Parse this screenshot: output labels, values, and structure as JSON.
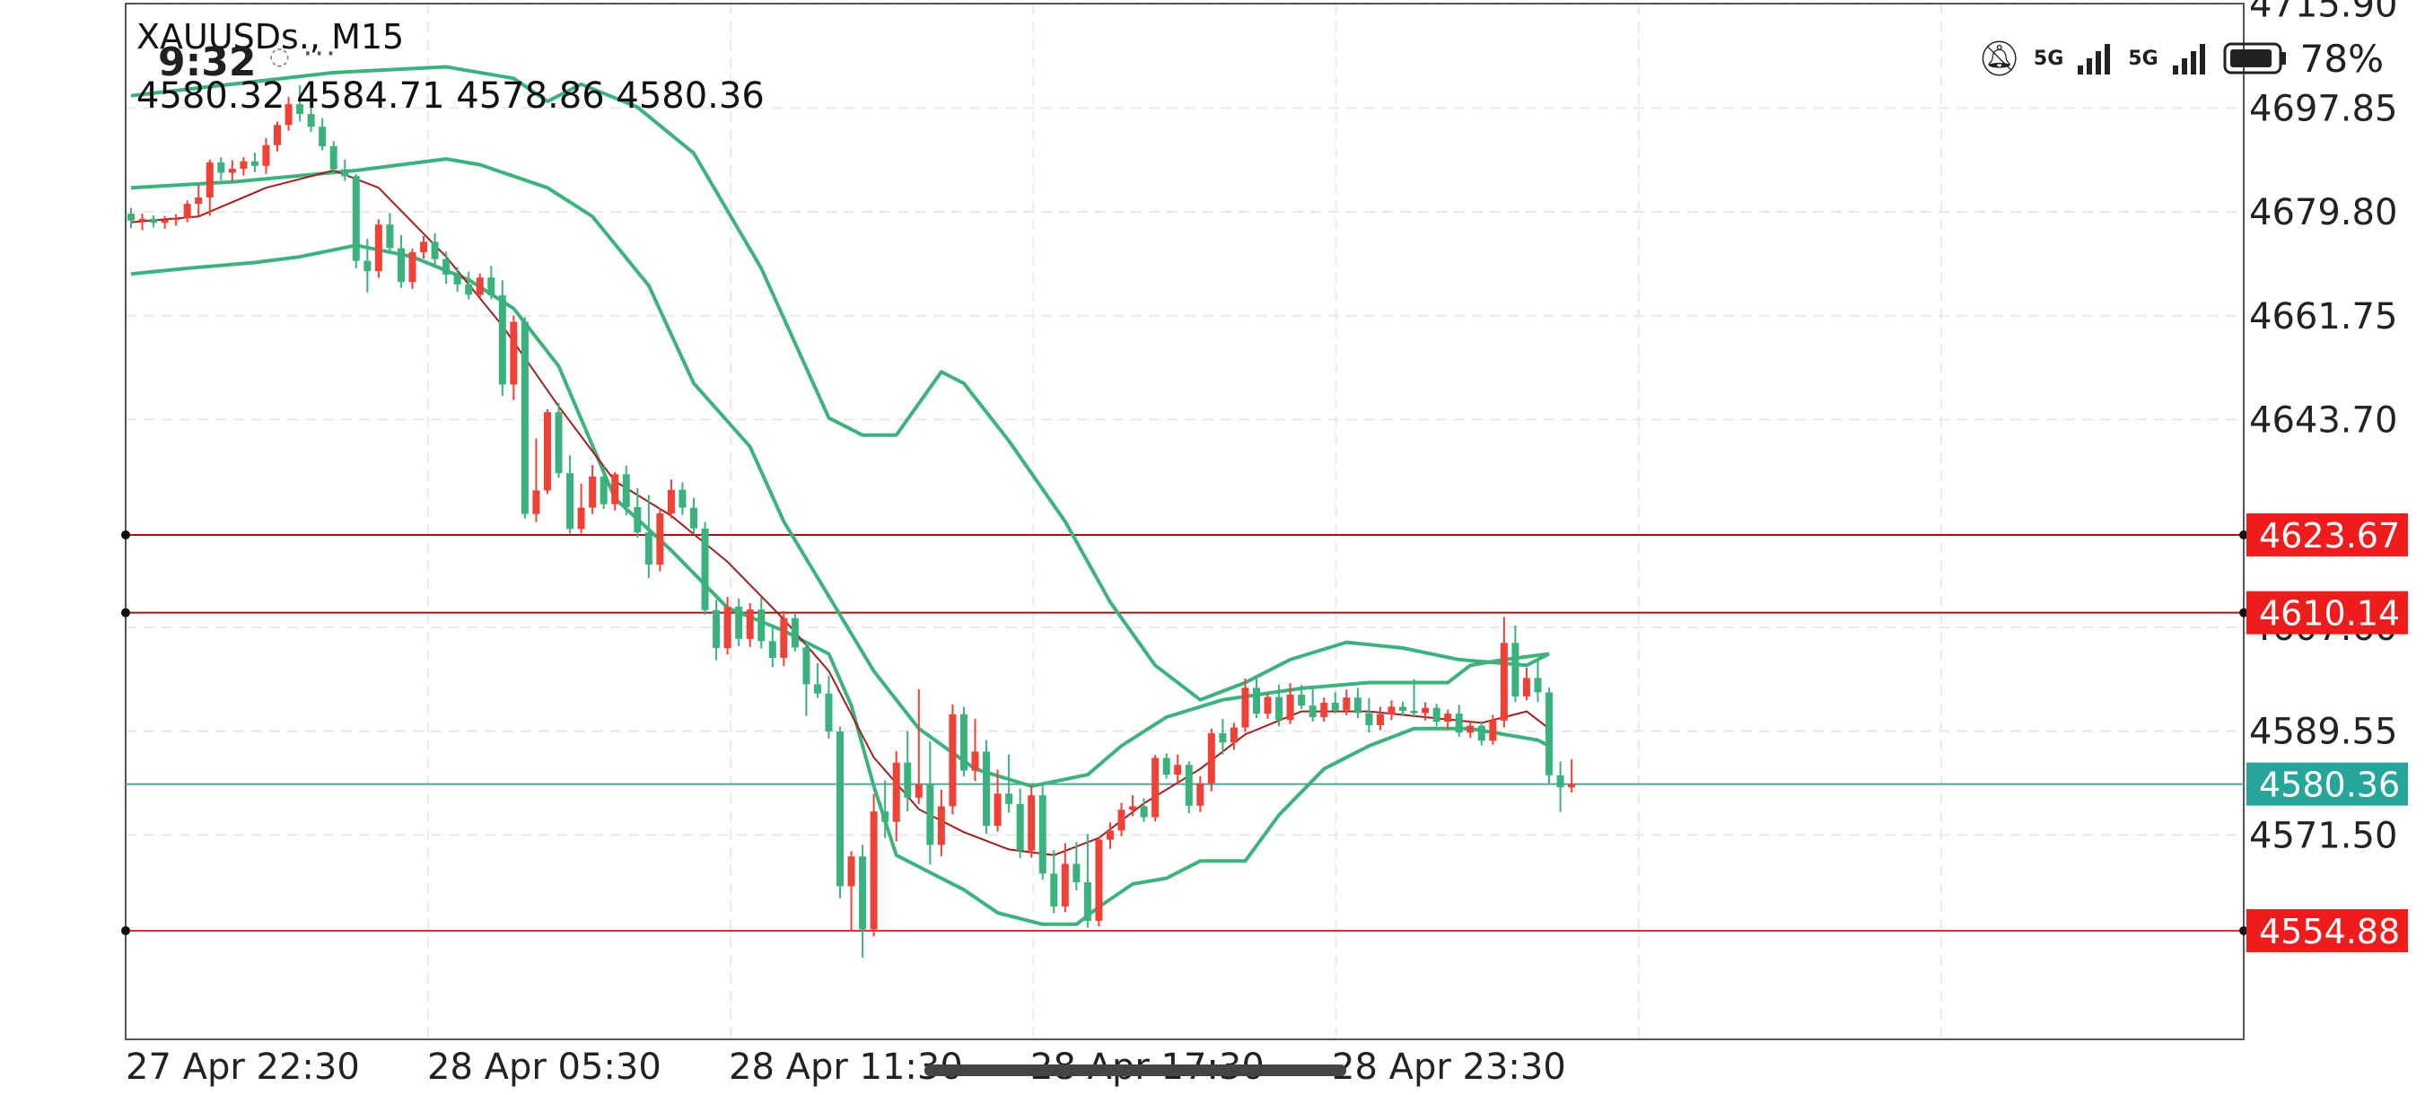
{
  "status_bar": {
    "time": "9:32",
    "icons": [
      "chat-bubble-icon",
      "more-dots-icon",
      "mute-icon",
      "signal-5g-icon",
      "signal-5g-icon",
      "battery-icon"
    ],
    "network_1": "5G",
    "network_2": "5G",
    "battery": "78%"
  },
  "header": {
    "symbol": "XAUUSDs., M15",
    "ohlc": "4580.32 4584.71 4578.86 4580.36"
  },
  "chart_data": {
    "type": "candlestick",
    "symbol": "XAUUSDs.",
    "timeframe": "M15",
    "ylim": [
      4536,
      4716
    ],
    "y_ticks": [
      "4715.90",
      "4697.85",
      "4679.80",
      "4661.75",
      "4643.70",
      "4607.60",
      "4589.55",
      "4571.50"
    ],
    "x_ticks": [
      "27 Apr 22:30",
      "28 Apr 05:30",
      "28 Apr 11:30",
      "28 Apr 17:30",
      "28 Apr 23:30"
    ],
    "grid": true,
    "colors": {
      "bull": "#ef4136",
      "bear": "#3ab27e",
      "bands": "#3cb27d",
      "ma": "#a51e1e",
      "hline": "#a31515",
      "hline_low": "#d8303a",
      "current": "#4aa89a",
      "badge_red": "#ee1c1c",
      "badge_teal": "#26a69a"
    },
    "candles": [
      [
        4679.5,
        4680.5,
        4677,
        4678.3
      ],
      [
        4678.3,
        4679.5,
        4676.6,
        4678.6
      ],
      [
        4678.6,
        4679.2,
        4677.1,
        4677.9
      ],
      [
        4677.9,
        4679.1,
        4676.9,
        4678.4
      ],
      [
        4678.4,
        4679.4,
        4677.4,
        4678.7
      ],
      [
        4678.7,
        4681.8,
        4678.0,
        4681.2
      ],
      [
        4681.2,
        4684.5,
        4679.1,
        4682.3
      ],
      [
        4682.3,
        4688.9,
        4679.1,
        4688.4
      ],
      [
        4688.4,
        4689.3,
        4685.3,
        4686.6
      ],
      [
        4686.6,
        4688.8,
        4685.1,
        4687.3
      ],
      [
        4687.3,
        4689.3,
        4686.1,
        4688.6
      ],
      [
        4688.6,
        4690.1,
        4686.7,
        4687.8
      ],
      [
        4687.8,
        4692.6,
        4686.4,
        4691.4
      ],
      [
        4691.4,
        4695.5,
        4690.3,
        4694.9
      ],
      [
        4694.9,
        4699.8,
        4693.9,
        4698.5
      ],
      [
        4698.5,
        4701.8,
        4695.5,
        4696.8
      ],
      [
        4696.8,
        4697.9,
        4693.7,
        4694.6
      ],
      [
        4694.6,
        4696.1,
        4690.5,
        4691.2
      ],
      [
        4691.2,
        4692.1,
        4686.5,
        4687.2
      ],
      [
        4687.2,
        4688.9,
        4685.2,
        4686.0
      ],
      [
        4686.0,
        4686.4,
        4670.0,
        4671.3
      ],
      [
        4671.3,
        4675.1,
        4665.8,
        4669.5
      ],
      [
        4669.5,
        4678.5,
        4668.3,
        4677.6
      ],
      [
        4677.6,
        4679.6,
        4672.6,
        4673.5
      ],
      [
        4673.5,
        4675.8,
        4666.6,
        4667.6
      ],
      [
        4667.6,
        4673.4,
        4666.4,
        4672.8
      ],
      [
        4672.8,
        4675.6,
        4671.7,
        4674.6
      ],
      [
        4674.6,
        4676.1,
        4670.6,
        4671.6
      ],
      [
        4671.6,
        4672.9,
        4667.3,
        4668.9
      ],
      [
        4668.9,
        4670.2,
        4665.9,
        4667.2
      ],
      [
        4667.2,
        4669.4,
        4664.6,
        4665.4
      ],
      [
        4665.4,
        4669.1,
        4664.9,
        4668.4
      ],
      [
        4668.4,
        4670.4,
        4664.6,
        4665.3
      ],
      [
        4665.3,
        4667.9,
        4647.8,
        4649.8
      ],
      [
        4649.8,
        4661.8,
        4647.1,
        4660.7
      ],
      [
        4660.7,
        4661.5,
        4626.5,
        4627.3
      ],
      [
        4627.3,
        4640.4,
        4625.9,
        4631.4
      ],
      [
        4631.4,
        4645.5,
        4630.8,
        4645.0
      ],
      [
        4645.0,
        4646.6,
        4633.6,
        4634.4
      ],
      [
        4634.4,
        4637.5,
        4623.9,
        4624.7
      ],
      [
        4624.7,
        4632.6,
        4623.9,
        4628.4
      ],
      [
        4628.4,
        4635.8,
        4627.3,
        4633.8
      ],
      [
        4633.8,
        4635.6,
        4628.2,
        4629.0
      ],
      [
        4629.0,
        4634.6,
        4627.9,
        4634.2
      ],
      [
        4634.2,
        4635.7,
        4627.1,
        4628.5
      ],
      [
        4628.5,
        4631.8,
        4623.2,
        4624.1
      ],
      [
        4624.1,
        4630.6,
        4616.2,
        4618.5
      ],
      [
        4618.5,
        4628.3,
        4617.3,
        4627.4
      ],
      [
        4627.4,
        4633.3,
        4626.6,
        4631.5
      ],
      [
        4631.5,
        4632.8,
        4627.1,
        4628.4
      ],
      [
        4628.4,
        4630.1,
        4623.8,
        4624.8
      ],
      [
        4624.8,
        4625.9,
        4609.8,
        4610.6
      ],
      [
        4610.6,
        4612.4,
        4601.9,
        4604.0
      ],
      [
        4604.0,
        4612.9,
        4602.9,
        4611.2
      ],
      [
        4611.2,
        4612.6,
        4604.3,
        4605.6
      ],
      [
        4605.6,
        4611.8,
        4604.2,
        4610.7
      ],
      [
        4610.7,
        4612.7,
        4603.9,
        4605.2
      ],
      [
        4605.2,
        4607.6,
        4600.7,
        4602.3
      ],
      [
        4602.3,
        4610.4,
        4600.9,
        4609.2
      ],
      [
        4609.2,
        4610.1,
        4603.4,
        4604.1
      ],
      [
        4604.1,
        4605.0,
        4592.2,
        4597.7
      ],
      [
        4597.7,
        4601.4,
        4595.3,
        4596.1
      ],
      [
        4596.1,
        4599.2,
        4588.3,
        4589.5
      ],
      [
        4589.5,
        4590.3,
        4560.5,
        4562.6
      ],
      [
        4562.6,
        4568.7,
        4555.0,
        4567.8
      ],
      [
        4567.8,
        4569.8,
        4550.2,
        4555.1
      ],
      [
        4555.1,
        4578.6,
        4553.9,
        4575.6
      ],
      [
        4575.6,
        4581.0,
        4571.0,
        4573.8
      ],
      [
        4573.8,
        4586.1,
        4570.4,
        4584.1
      ],
      [
        4584.1,
        4589.6,
        4575.6,
        4578.0
      ],
      [
        4578.0,
        4596.9,
        4576.9,
        4580.3
      ],
      [
        4580.3,
        4587.8,
        4566.4,
        4569.8
      ],
      [
        4569.8,
        4579.4,
        4567.8,
        4576.5
      ],
      [
        4576.5,
        4594.2,
        4575.1,
        4592.5
      ],
      [
        4592.5,
        4593.8,
        4581.7,
        4582.7
      ],
      [
        4582.7,
        4591.7,
        4580.9,
        4586.0
      ],
      [
        4586.0,
        4588.0,
        4571.7,
        4573.1
      ],
      [
        4573.1,
        4582.9,
        4572.1,
        4578.7
      ],
      [
        4578.7,
        4585.5,
        4575.4,
        4576.9
      ],
      [
        4576.9,
        4579.6,
        4567.5,
        4568.8
      ],
      [
        4568.8,
        4580.1,
        4567.6,
        4578.4
      ],
      [
        4578.4,
        4580.3,
        4563.7,
        4564.8
      ],
      [
        4564.8,
        4568.9,
        4557.9,
        4559.1
      ],
      [
        4559.1,
        4570.1,
        4558.1,
        4566.5
      ],
      [
        4566.5,
        4570.3,
        4561.9,
        4563.3
      ],
      [
        4563.3,
        4571.7,
        4555.4,
        4556.6
      ],
      [
        4556.6,
        4571.2,
        4555.6,
        4570.7
      ],
      [
        4570.7,
        4573.7,
        4569.1,
        4572.3
      ],
      [
        4572.3,
        4577.1,
        4571.3,
        4575.9
      ],
      [
        4575.9,
        4578.4,
        4574.8,
        4576.5
      ],
      [
        4576.5,
        4577.9,
        4573.8,
        4574.6
      ],
      [
        4574.6,
        4585.4,
        4573.9,
        4584.9
      ],
      [
        4584.9,
        4585.7,
        4581.3,
        4582.0
      ],
      [
        4582.0,
        4585.5,
        4580.5,
        4583.7
      ],
      [
        4583.7,
        4584.3,
        4575.3,
        4576.6
      ],
      [
        4576.6,
        4581.7,
        4575.5,
        4580.5
      ],
      [
        4580.5,
        4590.0,
        4579.1,
        4589.2
      ],
      [
        4589.2,
        4591.7,
        4585.5,
        4587.6
      ],
      [
        4587.6,
        4591.0,
        4586.3,
        4590.2
      ],
      [
        4590.2,
        4598.7,
        4589.4,
        4597.1
      ],
      [
        4597.1,
        4598.7,
        4591.8,
        4592.6
      ],
      [
        4592.6,
        4596.0,
        4591.7,
        4595.5
      ],
      [
        4595.5,
        4597.6,
        4590.4,
        4591.5
      ],
      [
        4591.5,
        4597.9,
        4590.8,
        4595.9
      ],
      [
        4595.9,
        4597.6,
        4593.4,
        4594.0
      ],
      [
        4594.0,
        4597.2,
        4591.2,
        4592.0
      ],
      [
        4592.0,
        4595.4,
        4591.2,
        4594.5
      ],
      [
        4594.5,
        4596.3,
        4592.6,
        4593.2
      ],
      [
        4593.2,
        4596.8,
        4592.3,
        4595.4
      ],
      [
        4595.4,
        4597.1,
        4591.8,
        4592.7
      ],
      [
        4592.7,
        4595.3,
        4589.3,
        4590.6
      ],
      [
        4590.6,
        4593.8,
        4589.7,
        4592.5
      ],
      [
        4592.5,
        4594.9,
        4591.5,
        4593.8
      ],
      [
        4593.8,
        4594.7,
        4592.2,
        4593.1
      ],
      [
        4593.1,
        4598.6,
        4591.9,
        4592.7
      ],
      [
        4592.7,
        4594.6,
        4591.4,
        4593.6
      ],
      [
        4593.6,
        4594.3,
        4590.4,
        4591.2
      ],
      [
        4591.2,
        4593.3,
        4589.8,
        4592.6
      ],
      [
        4592.6,
        4594.1,
        4588.6,
        4589.3
      ],
      [
        4589.3,
        4591.4,
        4588.4,
        4590.5
      ],
      [
        4590.5,
        4591.3,
        4587.1,
        4587.9
      ],
      [
        4587.9,
        4592.4,
        4587.2,
        4591.4
      ],
      [
        4591.4,
        4609.4,
        4590.2,
        4604.9
      ],
      [
        4604.9,
        4607.9,
        4594.6,
        4595.6
      ],
      [
        4595.6,
        4600.6,
        4594.9,
        4598.8
      ],
      [
        4598.8,
        4601.8,
        4594.6,
        4596.3
      ],
      [
        4596.3,
        4597.1,
        4580.4,
        4581.9
      ],
      [
        4581.9,
        4584.3,
        4575.5,
        4579.8
      ],
      [
        4579.8,
        4584.7,
        4578.9,
        4580.4
      ]
    ],
    "upper_band": [
      [
        0,
        4684
      ],
      [
        9,
        4685
      ],
      [
        20,
        4687
      ],
      [
        28,
        4689
      ],
      [
        31,
        4688
      ],
      [
        37,
        4684
      ],
      [
        41,
        4679
      ],
      [
        46,
        4667
      ],
      [
        50,
        4650
      ],
      [
        55,
        4639
      ],
      [
        58,
        4626
      ],
      [
        62,
        4613
      ],
      [
        66,
        4600
      ],
      [
        70,
        4590
      ],
      [
        75,
        4583
      ],
      [
        80,
        4580
      ],
      [
        85,
        4582
      ],
      [
        88,
        4587
      ],
      [
        92,
        4592
      ],
      [
        97,
        4595
      ],
      [
        104,
        4597
      ],
      [
        110,
        4598
      ],
      [
        117,
        4598
      ],
      [
        119,
        4601
      ],
      [
        122,
        4602
      ],
      [
        126,
        4603
      ]
    ],
    "lower_band": [
      [
        0,
        4669
      ],
      [
        5,
        4670
      ],
      [
        11,
        4671
      ],
      [
        15,
        4672
      ],
      [
        20,
        4674
      ],
      [
        25,
        4672
      ],
      [
        30,
        4668
      ],
      [
        34,
        4663
      ],
      [
        38,
        4653
      ],
      [
        43,
        4630
      ],
      [
        48,
        4621
      ],
      [
        53,
        4611
      ],
      [
        58,
        4607
      ],
      [
        62,
        4603
      ],
      [
        64,
        4594
      ],
      [
        66,
        4580
      ],
      [
        68,
        4568
      ],
      [
        71,
        4565
      ],
      [
        74,
        4562
      ],
      [
        77,
        4558
      ],
      [
        81,
        4556
      ],
      [
        84,
        4556
      ],
      [
        86,
        4559
      ],
      [
        89,
        4563
      ],
      [
        92,
        4564
      ],
      [
        95,
        4567
      ],
      [
        99,
        4567
      ],
      [
        102,
        4575
      ],
      [
        106,
        4583
      ],
      [
        110,
        4587
      ],
      [
        114,
        4590
      ],
      [
        119,
        4590
      ],
      [
        125,
        4588
      ],
      [
        126,
        4587
      ]
    ],
    "outer_upper": [
      [
        0,
        4700
      ],
      [
        18,
        4704
      ],
      [
        28,
        4705
      ],
      [
        34,
        4703
      ],
      [
        37,
        4699
      ],
      [
        40,
        4702
      ],
      [
        45,
        4698
      ],
      [
        50,
        4690
      ],
      [
        56,
        4670
      ],
      [
        62,
        4644
      ],
      [
        65,
        4641
      ],
      [
        68,
        4641
      ],
      [
        72,
        4652
      ],
      [
        74,
        4650
      ],
      [
        78,
        4640
      ],
      [
        83,
        4626
      ],
      [
        87,
        4612
      ],
      [
        91,
        4601
      ],
      [
        95,
        4595
      ],
      [
        99,
        4598
      ],
      [
        103,
        4602
      ],
      [
        108,
        4605
      ],
      [
        113,
        4604
      ],
      [
        118,
        4602
      ],
      [
        124,
        4601
      ],
      [
        126,
        4603
      ]
    ],
    "moving_average": [
      [
        0,
        4678
      ],
      [
        6,
        4679
      ],
      [
        12,
        4684
      ],
      [
        18,
        4687
      ],
      [
        22,
        4684
      ],
      [
        28,
        4672
      ],
      [
        33,
        4660
      ],
      [
        38,
        4646
      ],
      [
        43,
        4633
      ],
      [
        48,
        4627
      ],
      [
        53,
        4619
      ],
      [
        58,
        4609
      ],
      [
        62,
        4600
      ],
      [
        66,
        4585
      ],
      [
        70,
        4576
      ],
      [
        74,
        4572
      ],
      [
        78,
        4569
      ],
      [
        82,
        4568
      ],
      [
        86,
        4571
      ],
      [
        90,
        4577
      ],
      [
        95,
        4583
      ],
      [
        99,
        4589
      ],
      [
        104,
        4593
      ],
      [
        110,
        4593
      ],
      [
        115,
        4592
      ],
      [
        120,
        4591
      ],
      [
        124,
        4593
      ],
      [
        126,
        4590
      ]
    ],
    "horizontal_lines": [
      {
        "price": 4623.67,
        "label": "4623.67",
        "style": "dark_red"
      },
      {
        "price": 4610.14,
        "label": "4610.14",
        "style": "dark_red"
      },
      {
        "price": 4554.88,
        "label": "4554.88",
        "style": "red"
      }
    ],
    "current_price": {
      "price": 4580.36,
      "label": "4580.36"
    }
  }
}
